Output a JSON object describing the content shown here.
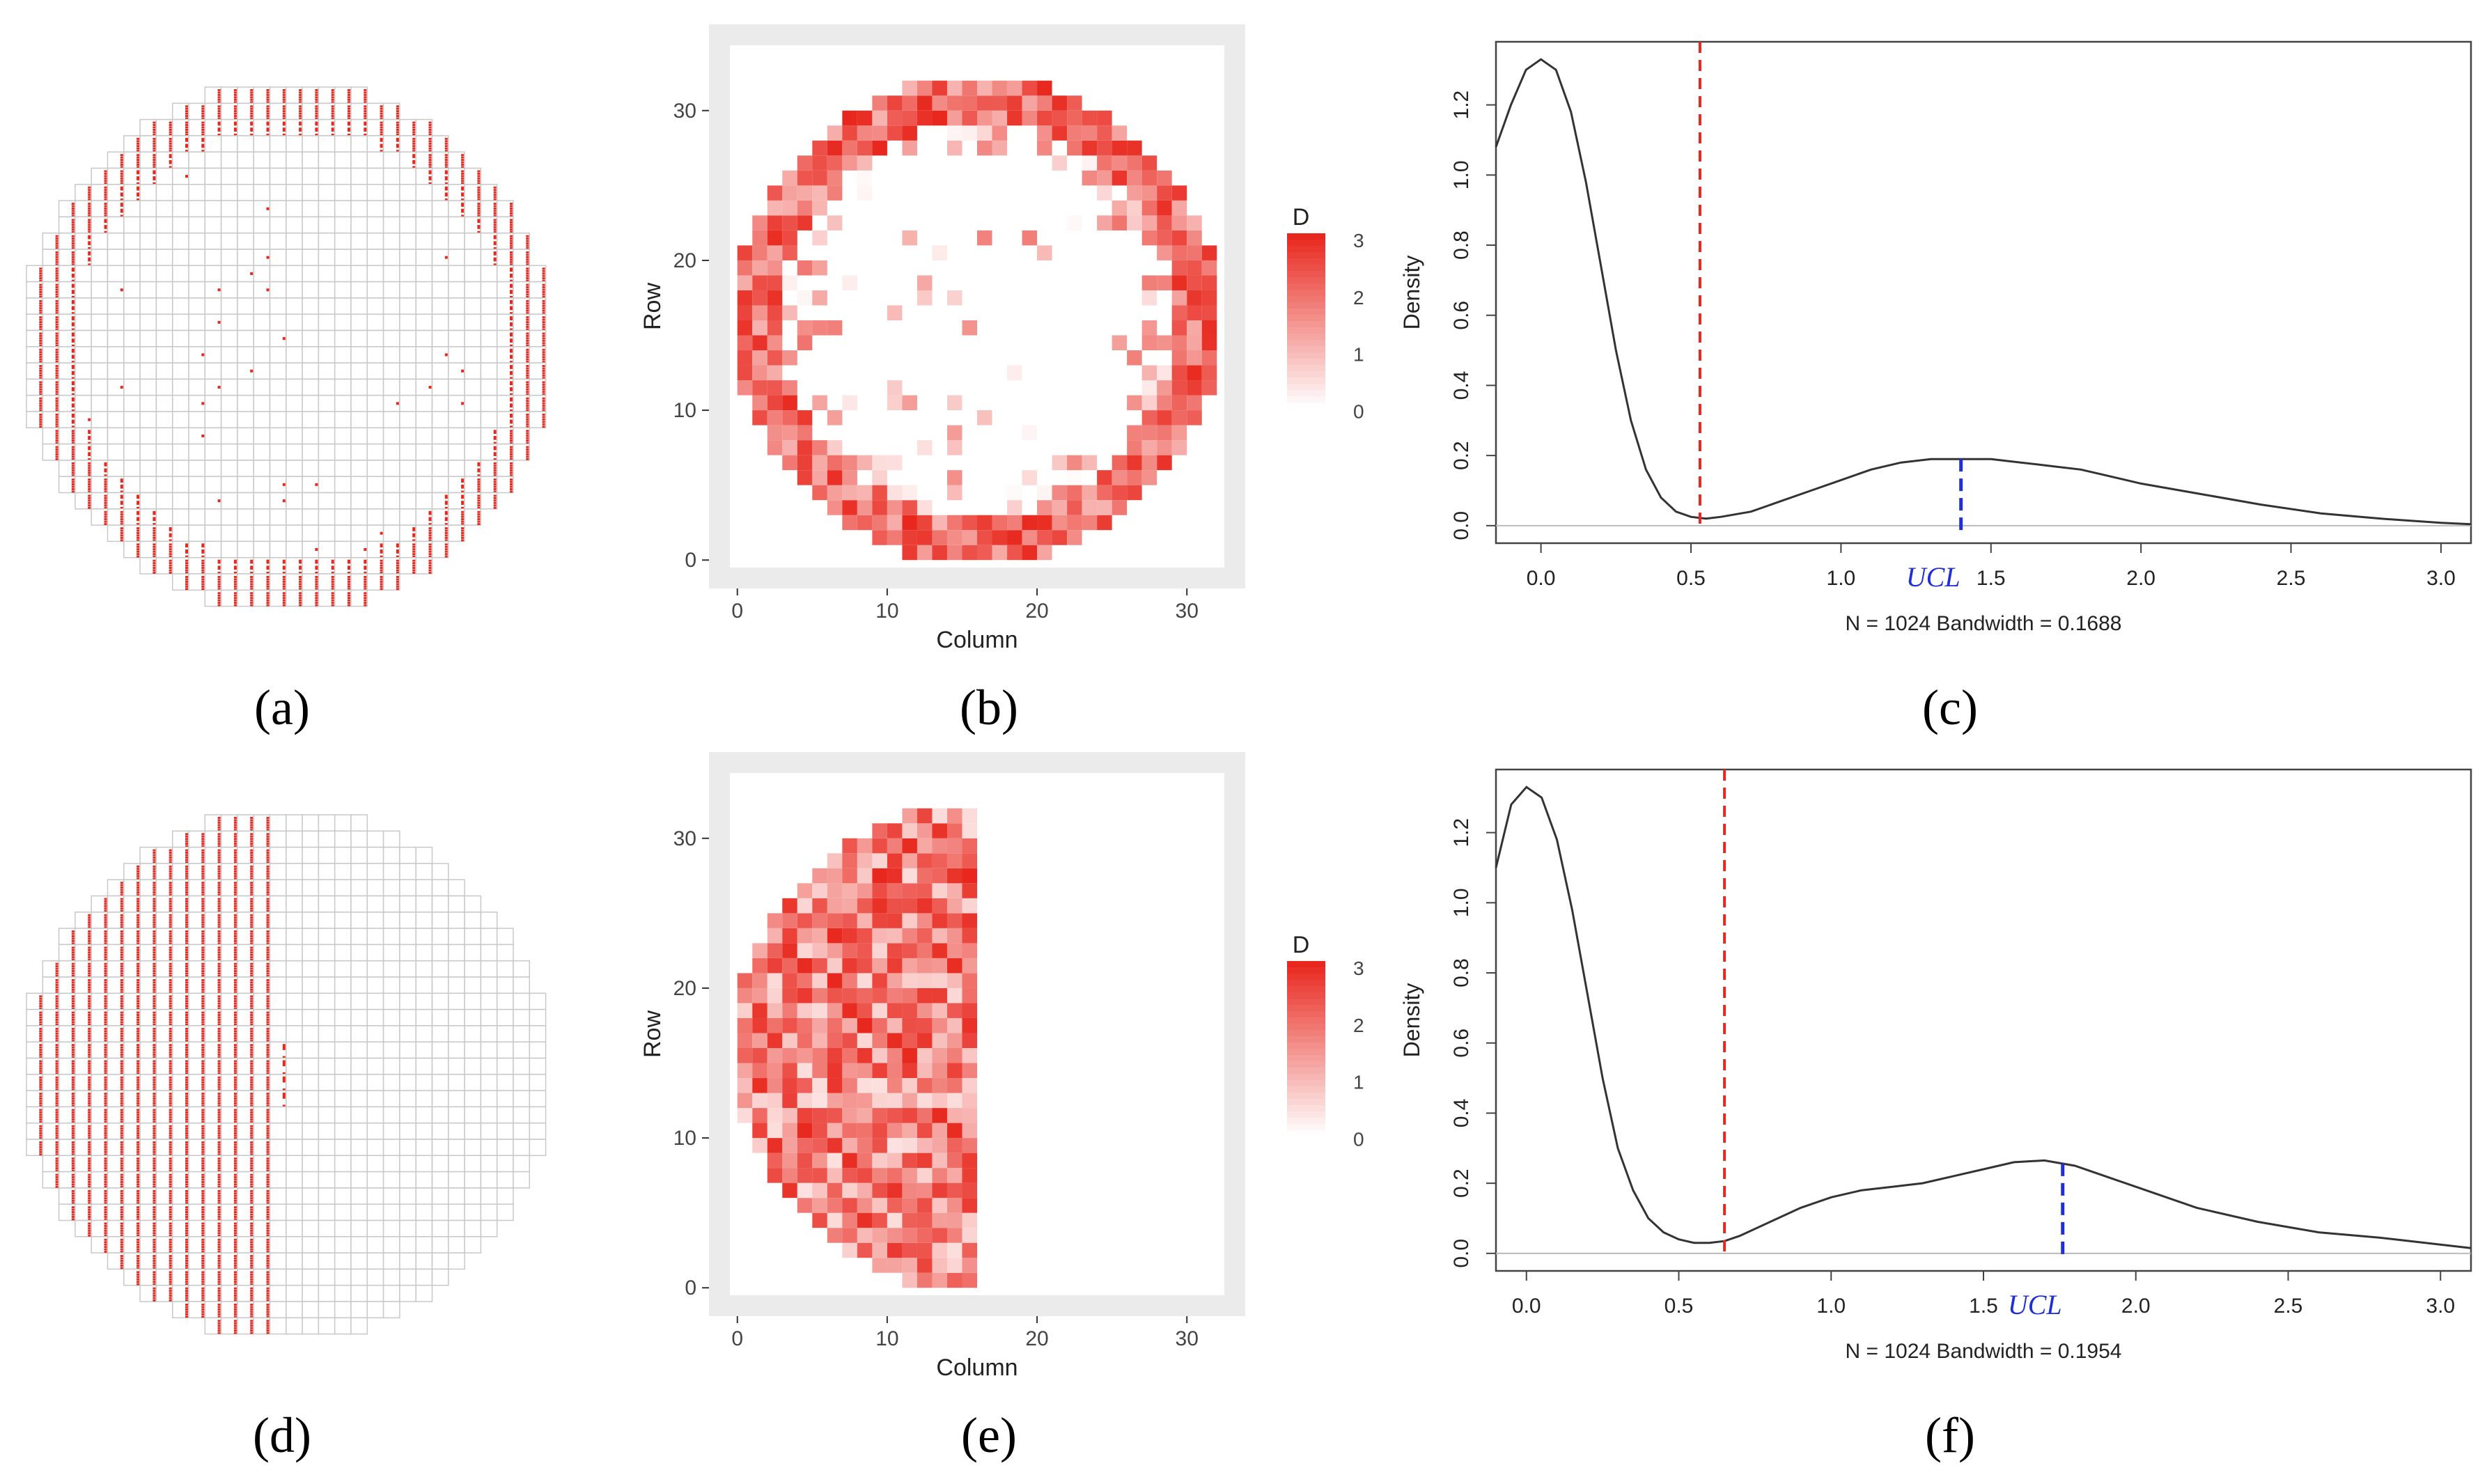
{
  "figure": {
    "panel_labels": [
      "(a)",
      "(b)",
      "(c)",
      "(d)",
      "(e)",
      "(f)"
    ]
  },
  "colors": {
    "defect": "#e8281e",
    "grid": "#c8c8c8",
    "heat_high": "#e8281e",
    "heat_low": "#ffffff",
    "panel_bg": "#ebebeb",
    "density_line": "#333333",
    "threshold": "#e8281e",
    "ucl": "#1f2ed6"
  },
  "chart_data": [
    {
      "id": "a",
      "type": "scatter",
      "title": "",
      "description_kind": "wafer-map",
      "grid_size": 32,
      "pattern": "edge-ring",
      "legend": []
    },
    {
      "id": "b",
      "type": "heatmap",
      "title": "",
      "xlabel": "Column",
      "ylabel": "Row",
      "xticks": [
        "0",
        "10",
        "20",
        "30"
      ],
      "yticks": [
        "0",
        "10",
        "20",
        "30"
      ],
      "xlim": [
        0,
        32
      ],
      "ylim": [
        0,
        32
      ],
      "legend_title": "D",
      "legend_ticks": [
        "0",
        "1",
        "2",
        "3"
      ],
      "value_range": [
        0,
        3
      ],
      "pattern": "edge-ring"
    },
    {
      "id": "c",
      "type": "line",
      "title": "",
      "xlabel": "N = 1024   Bandwidth = 0.1688",
      "ylabel": "Density",
      "xlim": [
        -0.15,
        3.1
      ],
      "ylim": [
        -0.05,
        1.38
      ],
      "xticks": [
        "0.0",
        "0.5",
        "1.0",
        "1.5",
        "2.0",
        "2.5",
        "3.0"
      ],
      "yticks": [
        "0.0",
        "0.2",
        "0.4",
        "0.6",
        "0.8",
        "1.0",
        "1.2"
      ],
      "series": [
        {
          "name": "density",
          "x": [
            -0.15,
            -0.1,
            -0.05,
            0.0,
            0.05,
            0.1,
            0.15,
            0.2,
            0.25,
            0.3,
            0.35,
            0.4,
            0.45,
            0.5,
            0.55,
            0.6,
            0.7,
            0.8,
            0.9,
            1.0,
            1.1,
            1.2,
            1.3,
            1.4,
            1.5,
            1.6,
            1.7,
            1.8,
            1.9,
            2.0,
            2.2,
            2.4,
            2.6,
            2.8,
            3.0,
            3.1
          ],
          "y": [
            1.08,
            1.2,
            1.3,
            1.33,
            1.3,
            1.18,
            0.98,
            0.74,
            0.5,
            0.3,
            0.16,
            0.08,
            0.04,
            0.025,
            0.02,
            0.025,
            0.04,
            0.07,
            0.1,
            0.13,
            0.16,
            0.18,
            0.19,
            0.19,
            0.19,
            0.18,
            0.17,
            0.16,
            0.14,
            0.12,
            0.09,
            0.06,
            0.035,
            0.02,
            0.008,
            0.004
          ]
        }
      ],
      "threshold": {
        "x": 0.53,
        "color": "red"
      },
      "ucl": {
        "x": 1.4,
        "label": "UCL",
        "color": "blue"
      }
    },
    {
      "id": "d",
      "type": "scatter",
      "title": "",
      "description_kind": "wafer-map",
      "grid_size": 32,
      "pattern": "left-half",
      "legend": []
    },
    {
      "id": "e",
      "type": "heatmap",
      "title": "",
      "xlabel": "Column",
      "ylabel": "Row",
      "xticks": [
        "0",
        "10",
        "20",
        "30"
      ],
      "yticks": [
        "0",
        "10",
        "20",
        "30"
      ],
      "xlim": [
        0,
        32
      ],
      "ylim": [
        0,
        32
      ],
      "legend_title": "D",
      "legend_ticks": [
        "0",
        "1",
        "2",
        "3"
      ],
      "value_range": [
        0,
        3
      ],
      "pattern": "left-half"
    },
    {
      "id": "f",
      "type": "line",
      "title": "",
      "xlabel": "N = 1024   Bandwidth = 0.1954",
      "ylabel": "Density",
      "xlim": [
        -0.1,
        3.1
      ],
      "ylim": [
        -0.05,
        1.38
      ],
      "xticks": [
        "0.0",
        "0.5",
        "1.0",
        "1.5",
        "2.0",
        "2.5",
        "3.0"
      ],
      "yticks": [
        "0.0",
        "0.2",
        "0.4",
        "0.6",
        "0.8",
        "1.0",
        "1.2"
      ],
      "series": [
        {
          "name": "density",
          "x": [
            -0.1,
            -0.05,
            0.0,
            0.05,
            0.1,
            0.15,
            0.2,
            0.25,
            0.3,
            0.35,
            0.4,
            0.45,
            0.5,
            0.55,
            0.6,
            0.65,
            0.7,
            0.8,
            0.9,
            1.0,
            1.1,
            1.2,
            1.3,
            1.4,
            1.5,
            1.6,
            1.7,
            1.8,
            1.9,
            2.0,
            2.2,
            2.4,
            2.6,
            2.8,
            3.0,
            3.1
          ],
          "y": [
            1.1,
            1.28,
            1.33,
            1.3,
            1.18,
            0.98,
            0.74,
            0.5,
            0.3,
            0.18,
            0.1,
            0.06,
            0.04,
            0.03,
            0.03,
            0.035,
            0.05,
            0.09,
            0.13,
            0.16,
            0.18,
            0.19,
            0.2,
            0.22,
            0.24,
            0.26,
            0.265,
            0.25,
            0.22,
            0.19,
            0.13,
            0.09,
            0.06,
            0.045,
            0.025,
            0.015
          ]
        }
      ],
      "threshold": {
        "x": 0.65,
        "color": "red"
      },
      "ucl": {
        "x": 1.76,
        "label": "UCL",
        "color": "blue"
      }
    }
  ]
}
